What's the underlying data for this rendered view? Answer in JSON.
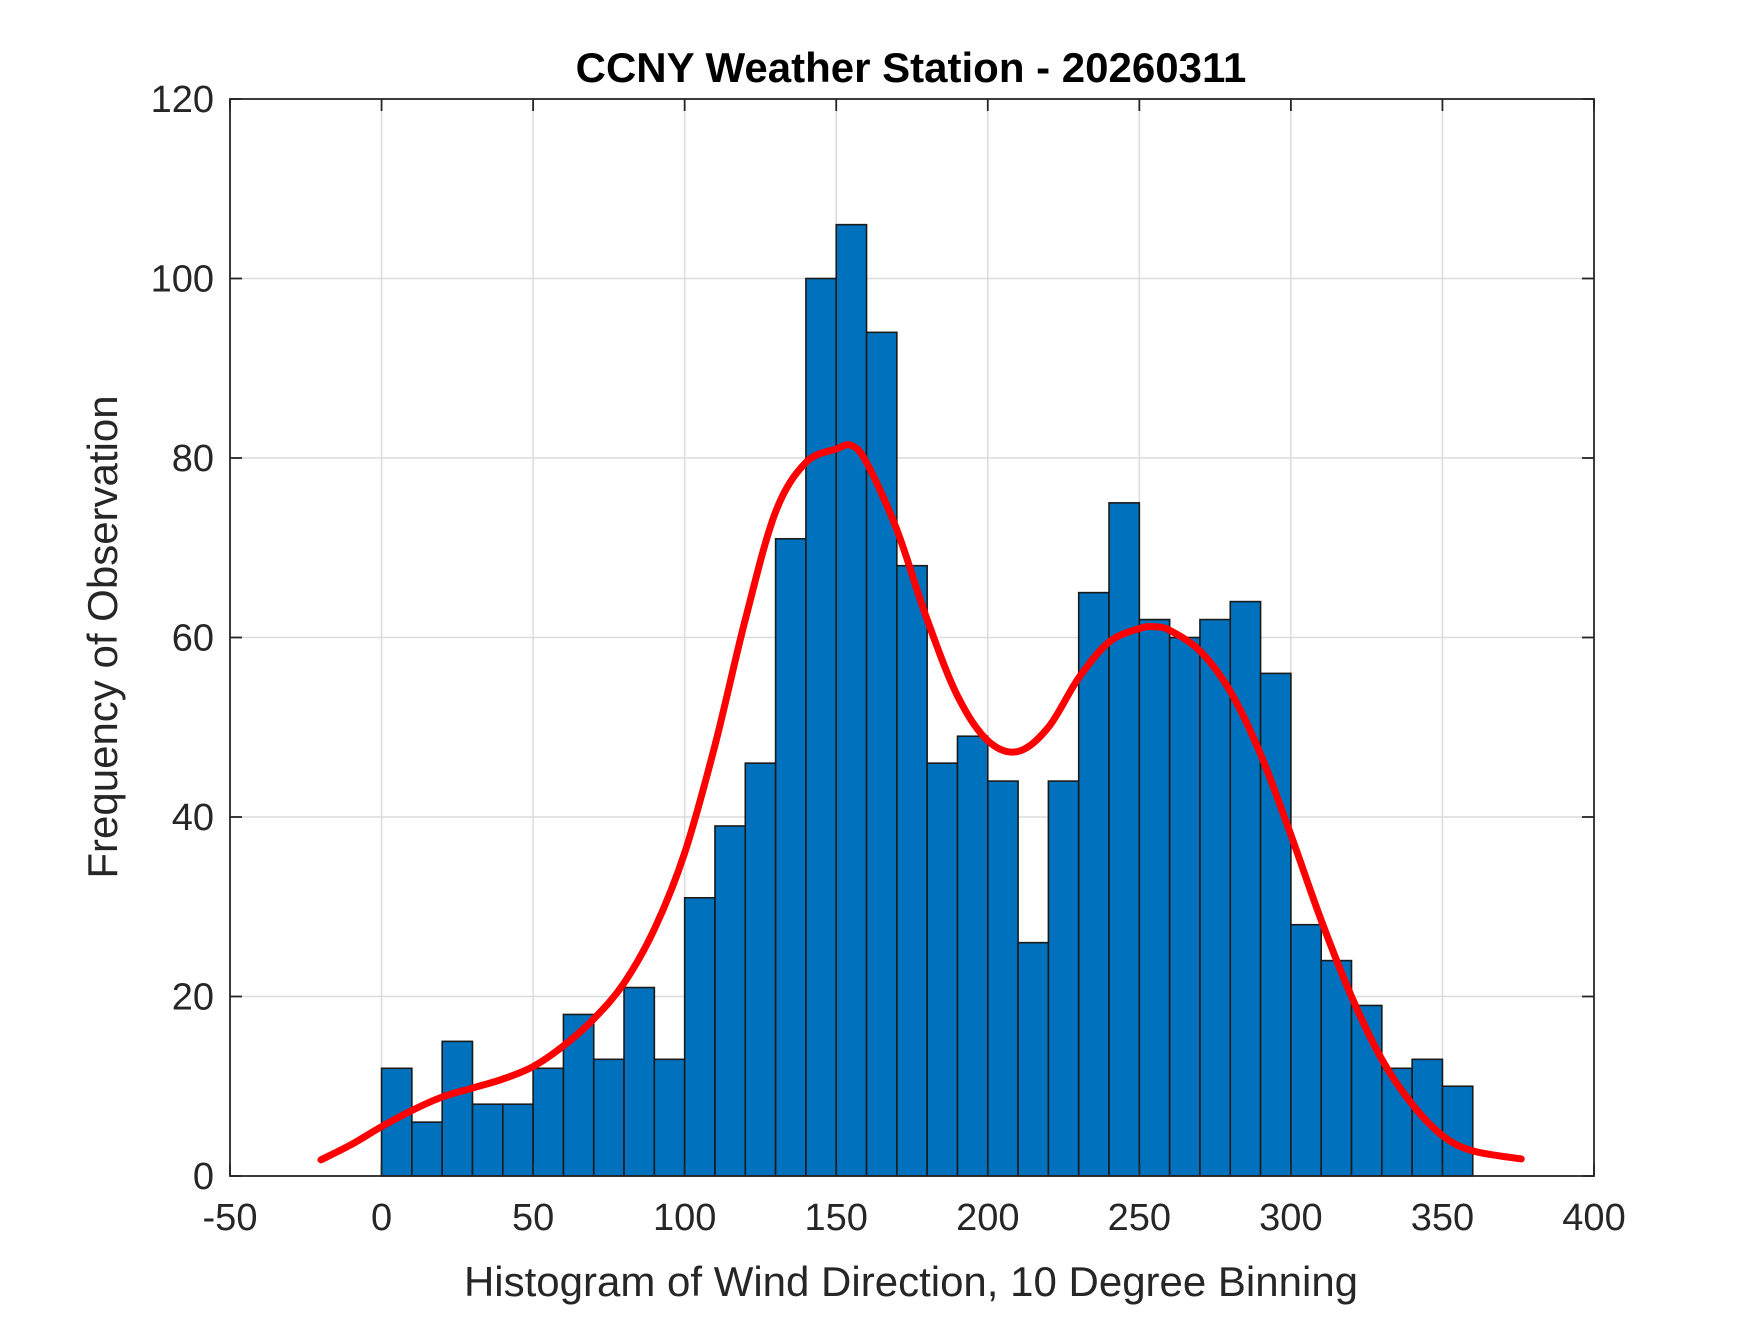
{
  "chart_data": {
    "type": "bar",
    "title": "CCNY Weather Station - 20260311",
    "xlabel": "Histogram of Wind Direction, 10 Degree Binning",
    "ylabel": "Frequency of Observation",
    "xlim": [
      -50,
      400
    ],
    "ylim": [
      0,
      120
    ],
    "xticks": [
      -50,
      0,
      50,
      100,
      150,
      200,
      250,
      300,
      350,
      400
    ],
    "yticks": [
      0,
      20,
      40,
      60,
      80,
      100,
      120
    ],
    "grid": true,
    "bin_width": 10,
    "bins": [
      0,
      10,
      20,
      30,
      40,
      50,
      60,
      70,
      80,
      90,
      100,
      110,
      120,
      130,
      140,
      150,
      160,
      170,
      180,
      190,
      200,
      210,
      220,
      230,
      240,
      250,
      260,
      270,
      280,
      290,
      300,
      310,
      320,
      330,
      340,
      350
    ],
    "values": [
      12,
      6,
      15,
      8,
      8,
      12,
      18,
      13,
      21,
      13,
      31,
      39,
      46,
      71,
      100,
      106,
      94,
      68,
      46,
      49,
      44,
      26,
      44,
      65,
      75,
      62,
      60,
      62,
      64,
      56,
      28,
      24,
      19,
      12,
      13,
      10
    ],
    "bar_color": "#0072BD",
    "curve": {
      "name": "density fit",
      "color": "#FF0000",
      "x": [
        -20,
        -10,
        0,
        10,
        20,
        30,
        40,
        50,
        60,
        70,
        80,
        90,
        100,
        110,
        120,
        130,
        140,
        150,
        155,
        160,
        170,
        180,
        190,
        200,
        210,
        220,
        230,
        240,
        250,
        255,
        260,
        270,
        280,
        290,
        300,
        310,
        320,
        330,
        340,
        350,
        360,
        376
      ],
      "y": [
        1.8,
        3.5,
        5.5,
        7.3,
        8.8,
        9.8,
        10.8,
        12.2,
        14.5,
        17.5,
        21.5,
        27.5,
        36,
        48,
        62,
        74,
        79.5,
        81,
        81.4,
        79.5,
        72,
        62,
        53.5,
        48.5,
        47.3,
        50,
        55.5,
        59.5,
        61,
        61.2,
        60.8,
        58.5,
        54,
        47,
        38,
        28.5,
        20,
        13,
        8,
        4.5,
        2.8,
        1.9
      ]
    }
  }
}
